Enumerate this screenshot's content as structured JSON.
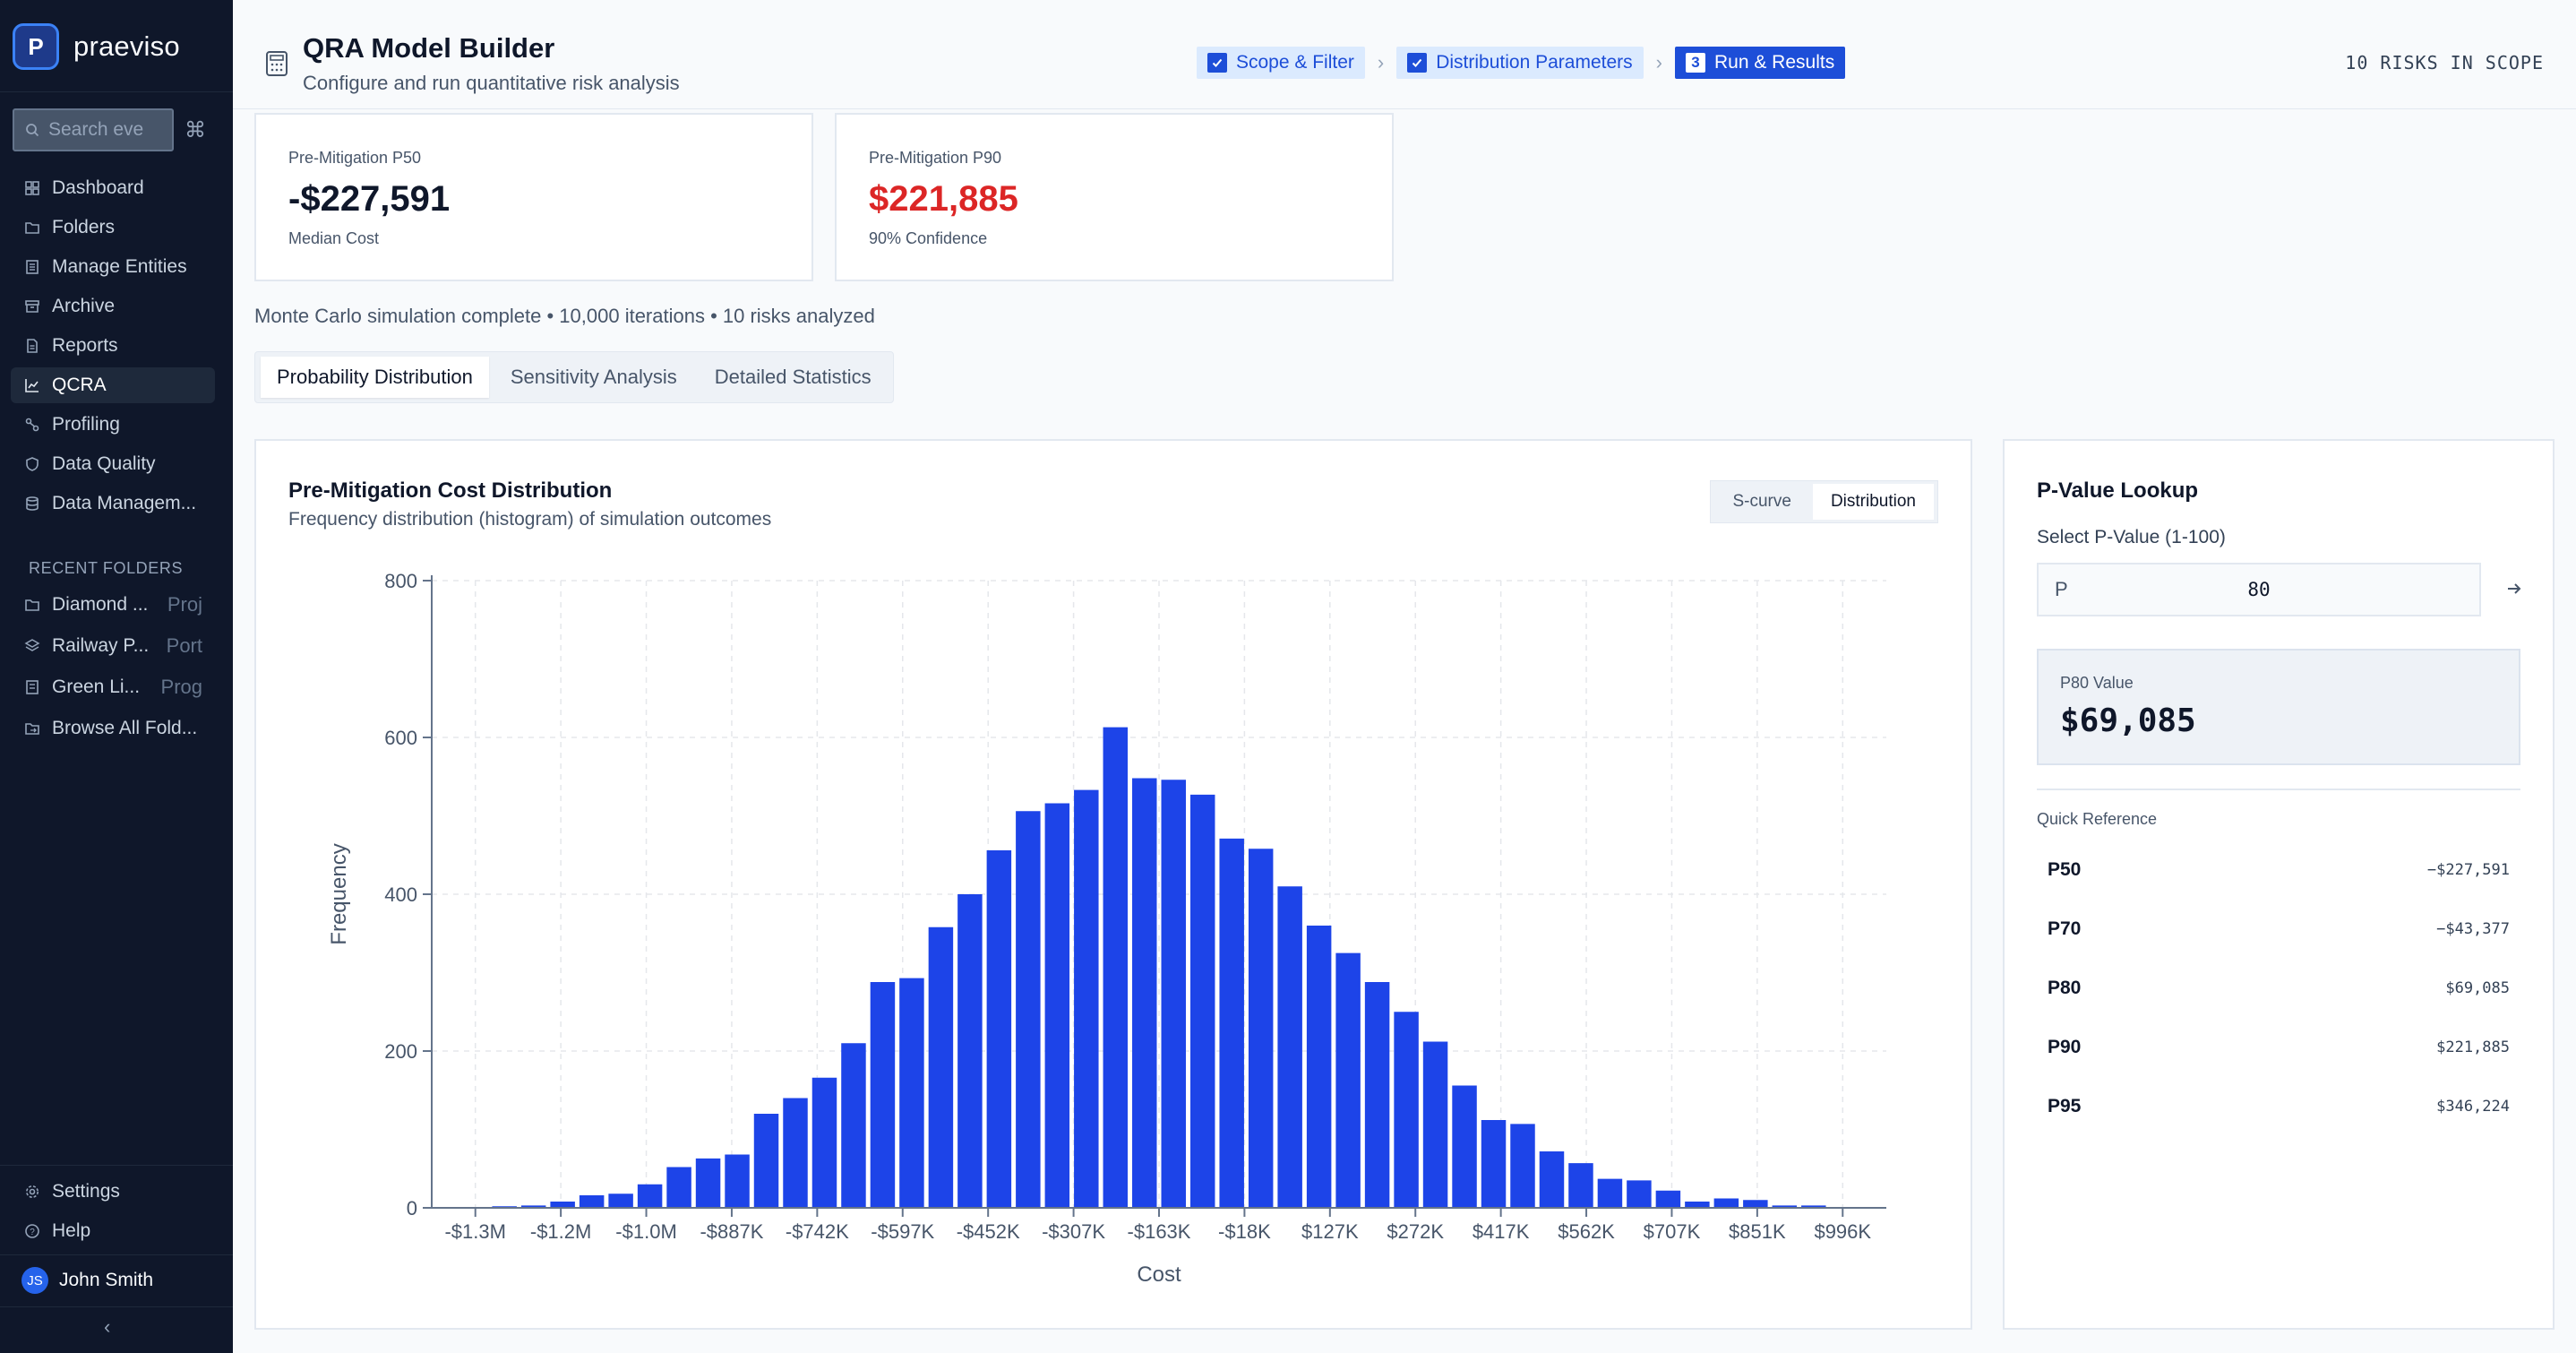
{
  "sidebar": {
    "brand": "praeviso",
    "brand_letter": "P",
    "search_placeholder": "Search eve",
    "shortcut": "⌘",
    "nav": [
      {
        "label": "Dashboard",
        "icon": "dashboard-icon"
      },
      {
        "label": "Folders",
        "icon": "folder-icon"
      },
      {
        "label": "Manage Entities",
        "icon": "building-icon"
      },
      {
        "label": "Archive",
        "icon": "archive-icon"
      },
      {
        "label": "Reports",
        "icon": "report-icon"
      },
      {
        "label": "QCRA",
        "icon": "chart-line-icon",
        "active": true
      },
      {
        "label": "Profiling",
        "icon": "profiling-icon"
      },
      {
        "label": "Data Quality",
        "icon": "shield-icon"
      },
      {
        "label": "Data Managem...",
        "icon": "database-icon"
      }
    ],
    "recent_title": "RECENT FOLDERS",
    "recent": [
      {
        "label": "Diamond ...",
        "tag": "Proj",
        "icon": "folder-icon"
      },
      {
        "label": "Railway P...",
        "tag": "Port",
        "icon": "layers-icon"
      },
      {
        "label": "Green Li...",
        "tag": "Prog",
        "icon": "building-icon"
      },
      {
        "label": "Browse All Fold...",
        "tag": "",
        "icon": "folder-open-icon"
      }
    ],
    "bottom": [
      {
        "label": "Settings",
        "icon": "gear-icon"
      },
      {
        "label": "Help",
        "icon": "help-icon"
      }
    ],
    "user": {
      "initials": "JS",
      "name": "John Smith"
    },
    "collapse": "‹"
  },
  "header": {
    "title": "QRA Model Builder",
    "subtitle": "Configure and run quantitative risk analysis",
    "steps": [
      {
        "label": "Scope & Filter",
        "state": "done"
      },
      {
        "label": "Distribution Parameters",
        "state": "done"
      },
      {
        "label": "Run & Results",
        "state": "current",
        "number": "3"
      }
    ],
    "risks_in_scope": "10 RISKS IN SCOPE"
  },
  "stats": [
    {
      "label": "Pre-Mitigation P50",
      "value": "-$227,591",
      "note": "Median Cost"
    },
    {
      "label": "Pre-Mitigation P90",
      "value": "$221,885",
      "note": "90% Confidence"
    }
  ],
  "summary": "Monte Carlo simulation complete • 10,000 iterations • 10 risks analyzed",
  "tabs": [
    "Probability Distribution",
    "Sensitivity Analysis",
    "Detailed Statistics"
  ],
  "active_tab": 0,
  "chart_panel": {
    "title": "Pre-Mitigation Cost Distribution",
    "subtitle": "Frequency distribution (histogram) of simulation outcomes",
    "toggle": [
      "S-curve",
      "Distribution"
    ],
    "active_toggle": 1
  },
  "chart_data": {
    "type": "bar",
    "xlabel": "Cost",
    "ylabel": "Frequency",
    "ylim": [
      0,
      800
    ],
    "yticks": [
      0,
      200,
      400,
      600,
      800
    ],
    "xticks": [
      "-$1.3M",
      "-$1.2M",
      "-$1.0M",
      "-$887K",
      "-$742K",
      "-$597K",
      "-$452K",
      "-$307K",
      "-$163K",
      "-$18K",
      "$127K",
      "$272K",
      "$417K",
      "$562K",
      "$707K",
      "$851K",
      "$996K"
    ],
    "grid": true,
    "color": "#1d44e8",
    "values": [
      1,
      0,
      2,
      3,
      8,
      16,
      18,
      30,
      52,
      63,
      68,
      120,
      140,
      166,
      210,
      288,
      293,
      358,
      400,
      456,
      506,
      516,
      533,
      613,
      548,
      546,
      527,
      471,
      458,
      410,
      360,
      325,
      288,
      250,
      212,
      156,
      112,
      107,
      72,
      57,
      37,
      35,
      22,
      8,
      12,
      10,
      3,
      3,
      0,
      0
    ]
  },
  "pvalue": {
    "title": "P-Value Lookup",
    "label": "Select P-Value (1-100)",
    "prefix": "P",
    "input": "80",
    "result_label": "P80 Value",
    "result_value": "$69,085",
    "quick_title": "Quick Reference",
    "quick": [
      {
        "p": "P50",
        "value": "−$227,591"
      },
      {
        "p": "P70",
        "value": "−$43,377"
      },
      {
        "p": "P80",
        "value": "$69,085"
      },
      {
        "p": "P90",
        "value": "$221,885"
      },
      {
        "p": "P95",
        "value": "$346,224"
      }
    ]
  }
}
